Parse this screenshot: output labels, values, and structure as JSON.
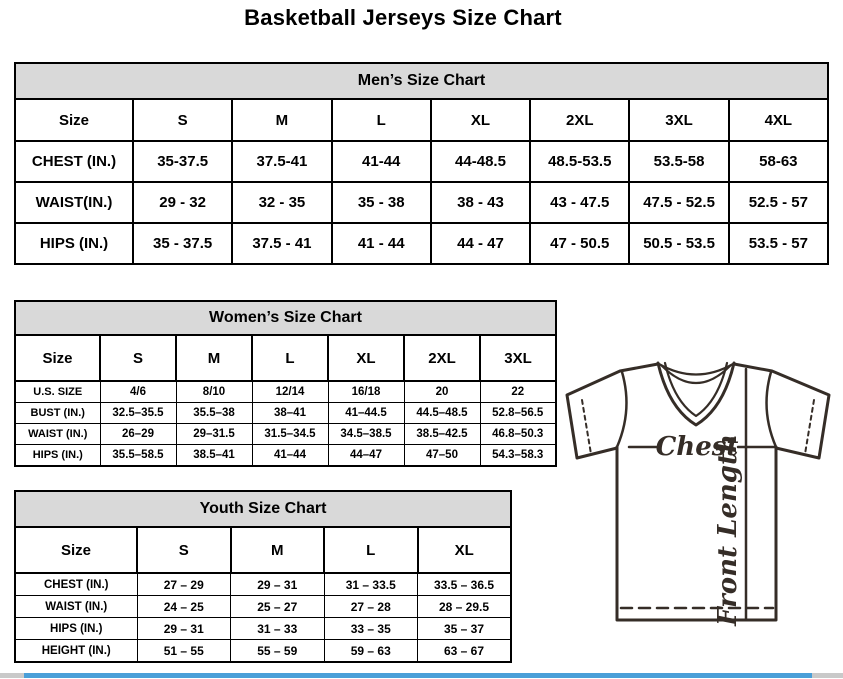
{
  "page": {
    "title": "Basketball Jerseys Size Chart"
  },
  "mens": {
    "title": "Men’s Size Chart",
    "columns": [
      "Size",
      "S",
      "M",
      "L",
      "XL",
      "2XL",
      "3XL",
      "4XL"
    ],
    "rows": [
      {
        "label": "CHEST (IN.)",
        "values": [
          "35-37.5",
          "37.5-41",
          "41-44",
          "44-48.5",
          "48.5-53.5",
          "53.5-58",
          "58-63"
        ]
      },
      {
        "label": "WAIST(IN.)",
        "values": [
          "29 - 32",
          "32 - 35",
          "35 - 38",
          "38 - 43",
          "43 - 47.5",
          "47.5 - 52.5",
          "52.5 - 57"
        ]
      },
      {
        "label": "HIPS (IN.)",
        "values": [
          "35 - 37.5",
          "37.5 - 41",
          "41 - 44",
          "44 - 47",
          "47 - 50.5",
          "50.5 - 53.5",
          "53.5 - 57"
        ]
      }
    ]
  },
  "womens": {
    "title": "Women’s Size Chart",
    "columns": [
      "Size",
      "S",
      "M",
      "L",
      "XL",
      "2XL",
      "3XL"
    ],
    "rows": [
      {
        "label": "U.S. SIZE",
        "values": [
          "4/6",
          "8/10",
          "12/14",
          "16/18",
          "20",
          "22"
        ]
      },
      {
        "label": "BUST (IN.)",
        "values": [
          "32.5–35.5",
          "35.5–38",
          "38–41",
          "41–44.5",
          "44.5–48.5",
          "52.8–56.5"
        ]
      },
      {
        "label": "WAIST (IN.)",
        "values": [
          "26–29",
          "29–31.5",
          "31.5–34.5",
          "34.5–38.5",
          "38.5–42.5",
          "46.8–50.3"
        ]
      },
      {
        "label": "HIPS (IN.)",
        "values": [
          "35.5–58.5",
          "38.5–41",
          "41–44",
          "44–47",
          "47–50",
          "54.3–58.3"
        ]
      }
    ]
  },
  "youth": {
    "title": "Youth Size Chart",
    "columns": [
      "Size",
      "S",
      "M",
      "L",
      "XL"
    ],
    "rows": [
      {
        "label": "CHEST (IN.)",
        "values": [
          "27 – 29",
          "29 – 31",
          "31 – 33.5",
          "33.5 – 36.5"
        ]
      },
      {
        "label": "WAIST (IN.)",
        "values": [
          "24 – 25",
          "25 – 27",
          "27 – 28",
          "28 – 29.5"
        ]
      },
      {
        "label": "HIPS (IN.)",
        "values": [
          "29 – 31",
          "31 – 33",
          "33 – 35",
          "35 – 37"
        ]
      },
      {
        "label": "HEIGHT (IN.)",
        "values": [
          "51 – 55",
          "55 – 59",
          "59 – 63",
          "63 – 67"
        ]
      }
    ]
  },
  "diagram": {
    "chest_label": "Chest",
    "front_length_label": "Front Length"
  },
  "colors": {
    "table_header_bg": "#d9d9d9",
    "table_border": "#000000",
    "jersey_line": "#352d27",
    "scrollbar_thumb_blue": "#4a9fd8",
    "scrollbar_cap_gray": "#c9c9c9"
  }
}
